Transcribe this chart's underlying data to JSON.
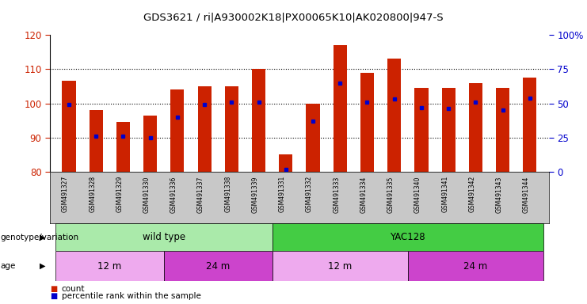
{
  "title": "GDS3621 / ri|A930002K18|PX00065K10|AK020800|947-S",
  "samples": [
    "GSM491327",
    "GSM491328",
    "GSM491329",
    "GSM491330",
    "GSM491336",
    "GSM491337",
    "GSM491338",
    "GSM491339",
    "GSM491331",
    "GSM491332",
    "GSM491333",
    "GSM491334",
    "GSM491335",
    "GSM491340",
    "GSM491341",
    "GSM491342",
    "GSM491343",
    "GSM491344"
  ],
  "counts": [
    106.5,
    98.0,
    94.5,
    96.5,
    104.0,
    105.0,
    105.0,
    110.0,
    85.0,
    100.0,
    117.0,
    109.0,
    113.0,
    104.5,
    104.5,
    106.0,
    104.5,
    107.5
  ],
  "percentile_ranks": [
    49,
    26,
    26,
    25,
    40,
    49,
    51,
    51,
    2,
    37,
    65,
    51,
    53,
    47,
    46,
    51,
    45,
    54
  ],
  "ymin": 80,
  "ymax": 120,
  "yticks": [
    80,
    90,
    100,
    110,
    120
  ],
  "right_yticks": [
    0,
    25,
    50,
    75,
    100
  ],
  "right_ytick_labels": [
    "0",
    "25",
    "50",
    "75",
    "100%"
  ],
  "bar_color": "#cc2200",
  "dot_color": "#0000cc",
  "bar_width": 0.5,
  "genotype_groups": [
    {
      "label": "wild type",
      "start": 0,
      "end": 8,
      "color": "#aaeaaa"
    },
    {
      "label": "YAC128",
      "start": 8,
      "end": 18,
      "color": "#44cc44"
    }
  ],
  "age_groups": [
    {
      "label": "12 m",
      "start": 0,
      "end": 4,
      "color": "#eeaaee"
    },
    {
      "label": "24 m",
      "start": 4,
      "end": 8,
      "color": "#cc44cc"
    },
    {
      "label": "12 m",
      "start": 8,
      "end": 13,
      "color": "#eeaaee"
    },
    {
      "label": "24 m",
      "start": 13,
      "end": 18,
      "color": "#cc44cc"
    }
  ],
  "legend_items": [
    {
      "color": "#cc2200",
      "label": "count"
    },
    {
      "color": "#0000cc",
      "label": "percentile rank within the sample"
    }
  ],
  "left_axis_color": "#cc2200",
  "right_axis_color": "#0000cc",
  "tick_label_bg": "#c8c8c8",
  "fig_bg": "#ffffff"
}
